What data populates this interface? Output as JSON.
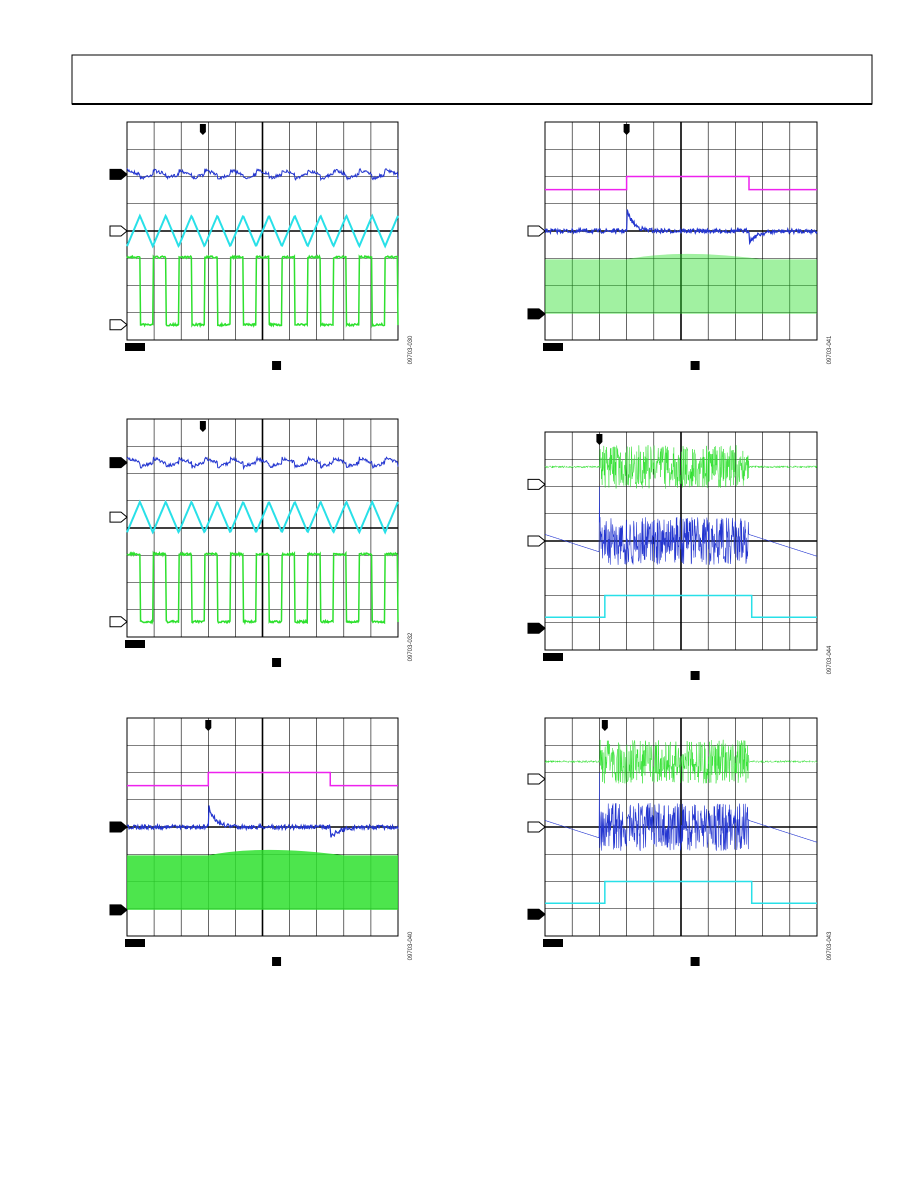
{
  "figures": [
    {
      "id": "09703-030"
    },
    {
      "id": "09703-041"
    },
    {
      "id": "09703-032"
    },
    {
      "id": "09703-044"
    },
    {
      "id": "09703-040"
    },
    {
      "id": "09703-043"
    }
  ]
}
